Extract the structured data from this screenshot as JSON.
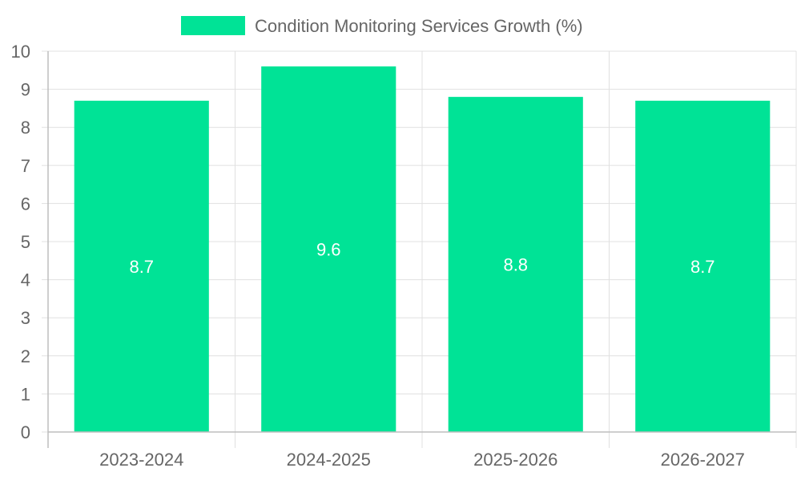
{
  "chart_data": {
    "type": "bar",
    "categories": [
      "2023-2024",
      "2024-2025",
      "2025-2026",
      "2026-2027"
    ],
    "series": [
      {
        "name": "Condition Monitoring Services Growth (%)",
        "values": [
          8.7,
          9.6,
          8.8,
          8.7
        ],
        "color": "#00e396"
      }
    ],
    "ylim": [
      0,
      10
    ],
    "yticks": [
      "0",
      "1",
      "2",
      "3",
      "4",
      "5",
      "6",
      "7",
      "8",
      "9",
      "10"
    ],
    "data_labels": [
      "8.7",
      "9.6",
      "8.8",
      "8.7"
    ],
    "legend_position": "top-center",
    "grid": true,
    "colors": {
      "grid": "#e0e0e0",
      "axis": "#bdbdbd",
      "tick_text": "#666666",
      "legend_text": "#666666",
      "data_label": "#ffffff"
    }
  }
}
